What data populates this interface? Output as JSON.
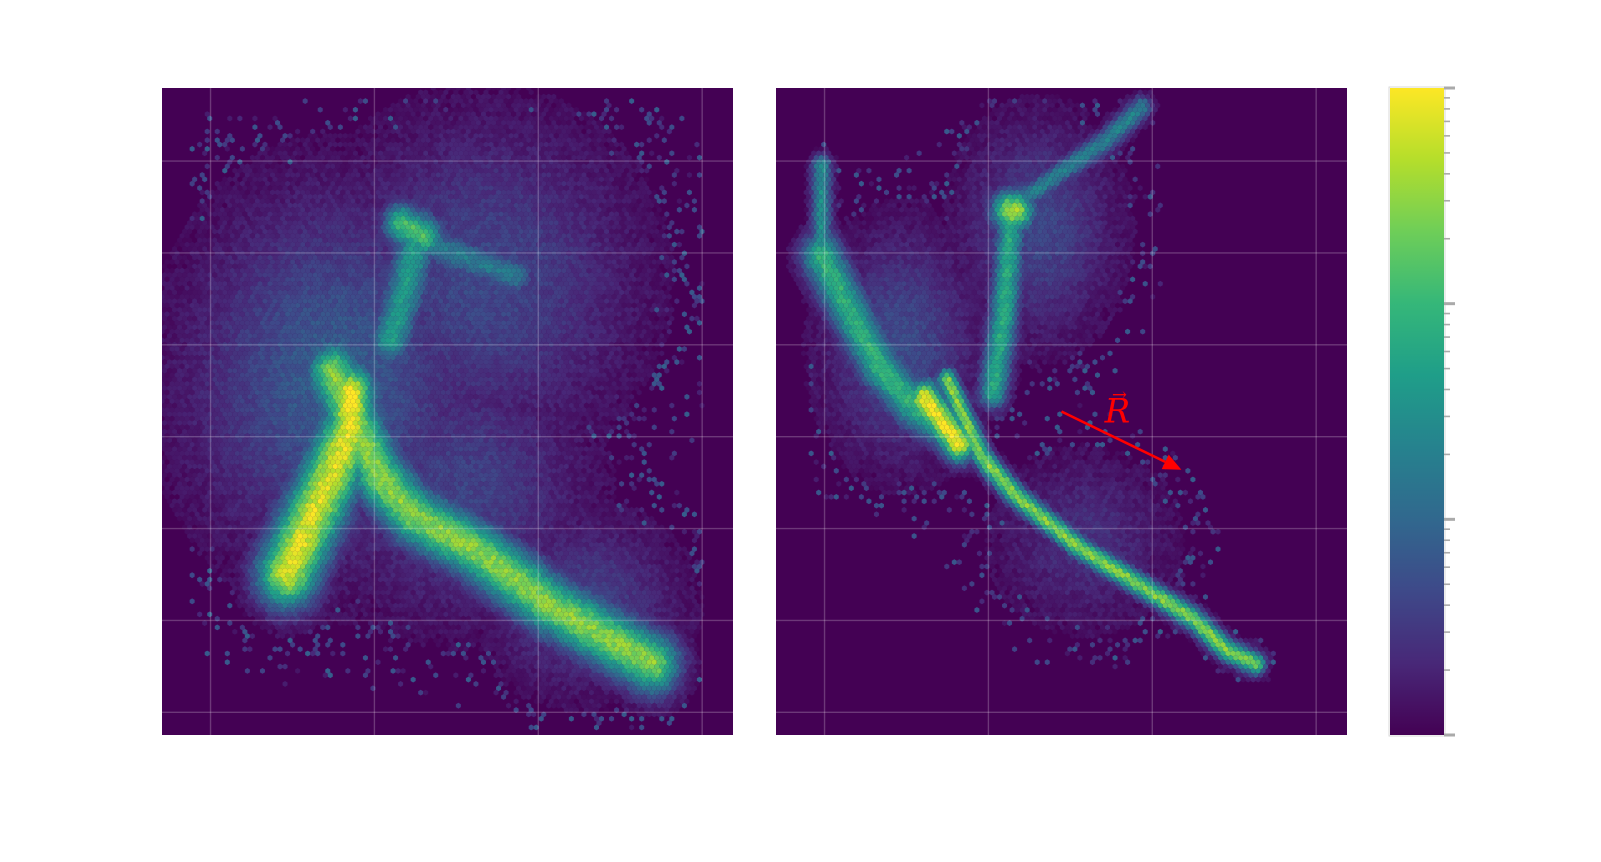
{
  "figure": {
    "background": "#ffffff",
    "panel_background": "#440154",
    "grid_color": "#ffffff"
  },
  "chart_data": [
    {
      "type": "heatmap",
      "subtype": "hexbin-density",
      "title": "",
      "xlabel": "",
      "ylabel": "",
      "xlim": [
        0,
        1
      ],
      "ylim": [
        0,
        1
      ],
      "grid": true,
      "x_grid": [
        0.085,
        0.372,
        0.659,
        0.946
      ],
      "y_grid": [
        0.965,
        0.823,
        0.681,
        0.539,
        0.397,
        0.255,
        0.113
      ],
      "colormap": "viridis",
      "features": [
        {
          "name": "main-sequence-segment-1",
          "path": [
            [
              0.3,
              0.44
            ],
            [
              0.38,
              0.6
            ],
            [
              0.44,
              0.66
            ],
            [
              0.56,
              0.72
            ],
            [
              0.68,
              0.8
            ],
            [
              0.8,
              0.86
            ],
            [
              0.86,
              0.89
            ]
          ],
          "width": 0.065,
          "intensity": 0.82
        },
        {
          "name": "upper-branch-1",
          "path": [
            [
              0.22,
              0.75
            ],
            [
              0.29,
              0.61
            ],
            [
              0.33,
              0.53
            ]
          ],
          "width": 0.075,
          "intensity": 0.95
        },
        {
          "name": "turnoff-blob-1",
          "path": [
            [
              0.33,
              0.47
            ],
            [
              0.33,
              0.52
            ]
          ],
          "width": 0.06,
          "intensity": 1.0
        },
        {
          "name": "giant-branch-1",
          "path": [
            [
              0.4,
              0.39
            ],
            [
              0.43,
              0.3
            ],
            [
              0.45,
              0.22
            ]
          ],
          "width": 0.05,
          "intensity": 0.55
        },
        {
          "name": "red-clump-1",
          "path": [
            [
              0.42,
              0.21
            ],
            [
              0.46,
              0.23
            ]
          ],
          "width": 0.045,
          "intensity": 0.72
        },
        {
          "name": "clump-streak-1",
          "path": [
            [
              0.46,
              0.24
            ],
            [
              0.62,
              0.29
            ]
          ],
          "width": 0.04,
          "intensity": 0.42
        }
      ],
      "halo": [
        {
          "name": "blue-wing-halo-1",
          "center": [
            0.3,
            0.45
          ],
          "radius": [
            0.22,
            0.25
          ],
          "intensity": 0.3
        },
        {
          "name": "upper-halo-1",
          "center": [
            0.56,
            0.3
          ],
          "radius": [
            0.24,
            0.22
          ],
          "intensity": 0.22
        },
        {
          "name": "tail-halo-1",
          "center": [
            0.74,
            0.8
          ],
          "radius": [
            0.15,
            0.12
          ],
          "intensity": 0.2
        },
        {
          "name": "middle-halo-1",
          "center": [
            0.52,
            0.62
          ],
          "radius": [
            0.2,
            0.18
          ],
          "intensity": 0.2
        }
      ],
      "scatter_extent": [
        [
          0.05,
          0.95
        ],
        [
          0.02,
          0.99
        ]
      ]
    },
    {
      "type": "heatmap",
      "subtype": "hexbin-density",
      "title": "",
      "xlabel": "",
      "ylabel": "",
      "xlim": [
        0,
        1
      ],
      "ylim": [
        0,
        1
      ],
      "grid": true,
      "x_grid": [
        0.085,
        0.372,
        0.659,
        0.946
      ],
      "y_grid": [
        0.965,
        0.823,
        0.681,
        0.539,
        0.397,
        0.255,
        0.113
      ],
      "colormap": "viridis",
      "features": [
        {
          "name": "main-sequence-segment-2",
          "path": [
            [
              0.3,
              0.45
            ],
            [
              0.36,
              0.57
            ],
            [
              0.42,
              0.63
            ],
            [
              0.53,
              0.71
            ],
            [
              0.64,
              0.77
            ],
            [
              0.73,
              0.82
            ],
            [
              0.79,
              0.87
            ],
            [
              0.84,
              0.89
            ]
          ],
          "width": 0.024,
          "intensity": 0.82
        },
        {
          "name": "upper-branch-2",
          "path": [
            [
              0.08,
              0.26
            ],
            [
              0.12,
              0.33
            ],
            [
              0.18,
              0.43
            ],
            [
              0.24,
              0.49
            ],
            [
              0.29,
              0.52
            ]
          ],
          "width": 0.05,
          "intensity": 0.65
        },
        {
          "name": "turnoff-blob-2",
          "path": [
            [
              0.26,
              0.48
            ],
            [
              0.32,
              0.55
            ]
          ],
          "width": 0.04,
          "intensity": 1.0
        },
        {
          "name": "giant-branch-2",
          "path": [
            [
              0.38,
              0.47
            ],
            [
              0.4,
              0.35
            ],
            [
              0.41,
              0.23
            ],
            [
              0.41,
              0.19
            ]
          ],
          "width": 0.035,
          "intensity": 0.62
        },
        {
          "name": "red-clump-2",
          "path": [
            [
              0.41,
              0.19
            ],
            [
              0.42,
              0.19
            ]
          ],
          "width": 0.045,
          "intensity": 0.88
        },
        {
          "name": "upper-giant-2",
          "path": [
            [
              0.42,
              0.18
            ],
            [
              0.5,
              0.13
            ],
            [
              0.58,
              0.08
            ],
            [
              0.64,
              0.03
            ]
          ],
          "width": 0.025,
          "intensity": 0.45
        },
        {
          "name": "blue-spur-2",
          "path": [
            [
              0.08,
              0.12
            ],
            [
              0.08,
              0.24
            ]
          ],
          "width": 0.025,
          "intensity": 0.5
        }
      ],
      "halo": [
        {
          "name": "blue-wing-halo-2",
          "center": [
            0.22,
            0.4
          ],
          "radius": [
            0.12,
            0.16
          ],
          "intensity": 0.24
        },
        {
          "name": "giant-halo-2",
          "center": [
            0.46,
            0.22
          ],
          "radius": [
            0.12,
            0.15
          ],
          "intensity": 0.22
        },
        {
          "name": "sequence-halo-2",
          "center": [
            0.54,
            0.7
          ],
          "radius": [
            0.14,
            0.12
          ],
          "intensity": 0.14
        }
      ],
      "scatter_extent": [
        [
          0.06,
          0.88
        ],
        [
          0.02,
          0.92
        ]
      ],
      "annotations": [
        {
          "type": "arrow",
          "label": "R",
          "label_accent": "→",
          "color": "#ff0000",
          "x_start": 0.5,
          "y_start": 0.5,
          "x_end": 0.71,
          "y_end": 0.59
        }
      ]
    }
  ],
  "colorbar": {
    "colormap": "viridis",
    "orientation": "vertical",
    "scale": "log",
    "decades": 3,
    "tick_labels": []
  }
}
